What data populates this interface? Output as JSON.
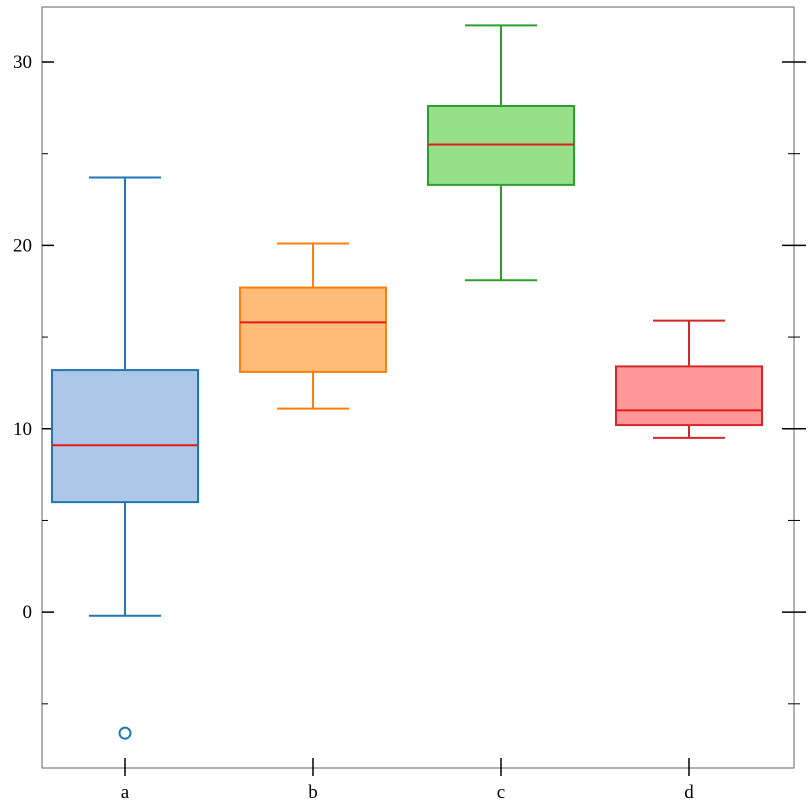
{
  "chart_data": {
    "type": "box",
    "title": "",
    "xlabel": "",
    "ylabel": "",
    "ylim": [
      -8.5,
      33
    ],
    "yticks_major": [
      0,
      10,
      20,
      30
    ],
    "yticks_minor": [
      -5,
      5,
      15,
      25
    ],
    "categories": [
      "a",
      "b",
      "c",
      "d"
    ],
    "boxes": [
      {
        "name": "a",
        "whisker_low": -0.2,
        "q1": 6.0,
        "median": 9.1,
        "q3": 13.2,
        "whisker_high": 23.7,
        "outliers": [
          -6.6
        ],
        "fill": "#aec7e8",
        "stroke": "#1f77b4"
      },
      {
        "name": "b",
        "whisker_low": 11.1,
        "q1": 13.1,
        "median": 15.8,
        "q3": 17.7,
        "whisker_high": 20.1,
        "outliers": [],
        "fill": "#ffbb78",
        "stroke": "#ff7f0e"
      },
      {
        "name": "c",
        "whisker_low": 18.1,
        "q1": 23.3,
        "median": 25.5,
        "q3": 27.6,
        "whisker_high": 32.0,
        "outliers": [],
        "fill": "#98df8a",
        "stroke": "#2ca02c"
      },
      {
        "name": "d",
        "whisker_low": 9.5,
        "q1": 10.2,
        "median": 11.0,
        "q3": 13.4,
        "whisker_high": 15.9,
        "outliers": [],
        "fill": "#ff9896",
        "stroke": "#d62728"
      }
    ],
    "median_color": "#e31a1c",
    "grid": false,
    "legend": "none"
  }
}
